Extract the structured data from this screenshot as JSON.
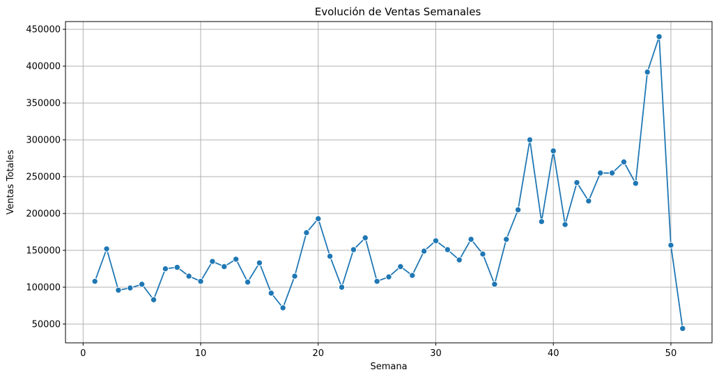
{
  "chart_data": {
    "type": "line",
    "title": "Evolución de Ventas Semanales",
    "xlabel": "Semana",
    "ylabel": "Ventas Totales",
    "grid": true,
    "xlim": [
      -1.5,
      53.5
    ],
    "ylim": [
      24500,
      460500
    ],
    "xticks": [
      0,
      10,
      20,
      30,
      40,
      50
    ],
    "yticks": [
      50000,
      100000,
      150000,
      200000,
      250000,
      300000,
      350000,
      400000,
      450000
    ],
    "series": [
      {
        "color": "#1f77b4",
        "marker": "circle",
        "x": [
          1,
          2,
          3,
          4,
          5,
          6,
          7,
          8,
          9,
          10,
          11,
          12,
          13,
          14,
          15,
          16,
          17,
          18,
          19,
          20,
          21,
          22,
          23,
          24,
          25,
          26,
          27,
          28,
          29,
          30,
          31,
          32,
          33,
          34,
          35,
          36,
          37,
          38,
          39,
          40,
          41,
          42,
          43,
          44,
          45,
          46,
          47,
          48,
          49,
          50,
          51
        ],
        "values": [
          108000,
          152000,
          96000,
          99000,
          104000,
          83000,
          125000,
          127000,
          115000,
          108000,
          135000,
          128000,
          138000,
          107000,
          133000,
          92000,
          72000,
          115000,
          174000,
          193000,
          142000,
          100000,
          151000,
          167000,
          108000,
          114000,
          128000,
          116000,
          149000,
          163000,
          151000,
          137000,
          165000,
          145000,
          104000,
          165000,
          205000,
          300000,
          189000,
          285000,
          185000,
          242000,
          217000,
          255000,
          255000,
          270000,
          241000,
          392000,
          440000,
          157000,
          44000
        ]
      }
    ]
  }
}
